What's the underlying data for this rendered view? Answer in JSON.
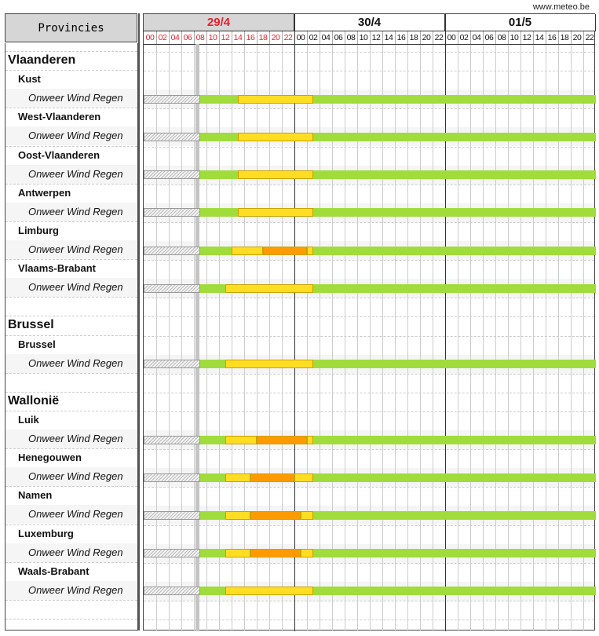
{
  "source": "www.meteo.be",
  "header": {
    "title": "Provincies"
  },
  "chart_data": {
    "type": "gantt",
    "days": [
      {
        "label": "29/4",
        "current": true
      },
      {
        "label": "30/4"
      },
      {
        "label": "01/5"
      }
    ],
    "hour_ticks": [
      "00",
      "02",
      "04",
      "06",
      "08",
      "10",
      "12",
      "14",
      "16",
      "18",
      "20",
      "22"
    ],
    "current_hour": 8.5,
    "past_until_hour": 9,
    "colors": {
      "none": "#a0dc3c",
      "low": "#ffdd22",
      "medium": "#ff9a00",
      "past": "#cfcfcf",
      "current_day_text": "#e8202a"
    },
    "rows": [
      {
        "type": "region",
        "label": "Vlaanderen"
      },
      {
        "type": "province",
        "label": "Kust"
      },
      {
        "type": "param",
        "label": "Onweer Wind Regen",
        "segments": [
          {
            "level": "low",
            "from": 15,
            "to": 27
          }
        ]
      },
      {
        "type": "province",
        "label": "West-Vlaanderen"
      },
      {
        "type": "param",
        "label": "Onweer Wind Regen",
        "segments": [
          {
            "level": "low",
            "from": 15,
            "to": 27
          }
        ]
      },
      {
        "type": "province",
        "label": "Oost-Vlaanderen"
      },
      {
        "type": "param",
        "label": "Onweer Wind Regen",
        "segments": [
          {
            "level": "low",
            "from": 15,
            "to": 27
          }
        ]
      },
      {
        "type": "province",
        "label": "Antwerpen"
      },
      {
        "type": "param",
        "label": "Onweer Wind Regen",
        "segments": [
          {
            "level": "low",
            "from": 15,
            "to": 27
          }
        ]
      },
      {
        "type": "province",
        "label": "Limburg"
      },
      {
        "type": "param",
        "label": "Onweer Wind Regen",
        "segments": [
          {
            "level": "low",
            "from": 14,
            "to": 19
          },
          {
            "level": "medium",
            "from": 19,
            "to": 26
          },
          {
            "level": "low",
            "from": 26,
            "to": 27
          }
        ]
      },
      {
        "type": "province",
        "label": "Vlaams-Brabant"
      },
      {
        "type": "param",
        "label": "Onweer Wind Regen",
        "segments": [
          {
            "level": "low",
            "from": 13,
            "to": 27
          }
        ]
      },
      {
        "type": "blank"
      },
      {
        "type": "region",
        "label": "Brussel"
      },
      {
        "type": "province",
        "label": "Brussel"
      },
      {
        "type": "param",
        "label": "Onweer Wind Regen",
        "segments": [
          {
            "level": "low",
            "from": 13,
            "to": 27
          }
        ]
      },
      {
        "type": "blank"
      },
      {
        "type": "region",
        "label": "Wallonië"
      },
      {
        "type": "province",
        "label": "Luik"
      },
      {
        "type": "param",
        "label": "Onweer Wind Regen",
        "segments": [
          {
            "level": "low",
            "from": 13,
            "to": 18
          },
          {
            "level": "medium",
            "from": 18,
            "to": 26
          },
          {
            "level": "low",
            "from": 26,
            "to": 27
          }
        ]
      },
      {
        "type": "province",
        "label": "Henegouwen"
      },
      {
        "type": "param",
        "label": "Onweer Wind Regen",
        "segments": [
          {
            "level": "low",
            "from": 13,
            "to": 17
          },
          {
            "level": "medium",
            "from": 17,
            "to": 24
          },
          {
            "level": "low",
            "from": 24,
            "to": 27
          }
        ]
      },
      {
        "type": "province",
        "label": "Namen"
      },
      {
        "type": "param",
        "label": "Onweer Wind Regen",
        "segments": [
          {
            "level": "low",
            "from": 13,
            "to": 17
          },
          {
            "level": "medium",
            "from": 17,
            "to": 25
          },
          {
            "level": "low",
            "from": 25,
            "to": 27
          }
        ]
      },
      {
        "type": "province",
        "label": "Luxemburg"
      },
      {
        "type": "param",
        "label": "Onweer Wind Regen",
        "segments": [
          {
            "level": "low",
            "from": 13,
            "to": 17
          },
          {
            "level": "medium",
            "from": 17,
            "to": 25
          },
          {
            "level": "low",
            "from": 25,
            "to": 27
          }
        ]
      },
      {
        "type": "province",
        "label": "Waals-Brabant"
      },
      {
        "type": "param",
        "label": "Onweer Wind Regen",
        "segments": [
          {
            "level": "low",
            "from": 13,
            "to": 27
          }
        ]
      },
      {
        "type": "blank"
      }
    ]
  }
}
